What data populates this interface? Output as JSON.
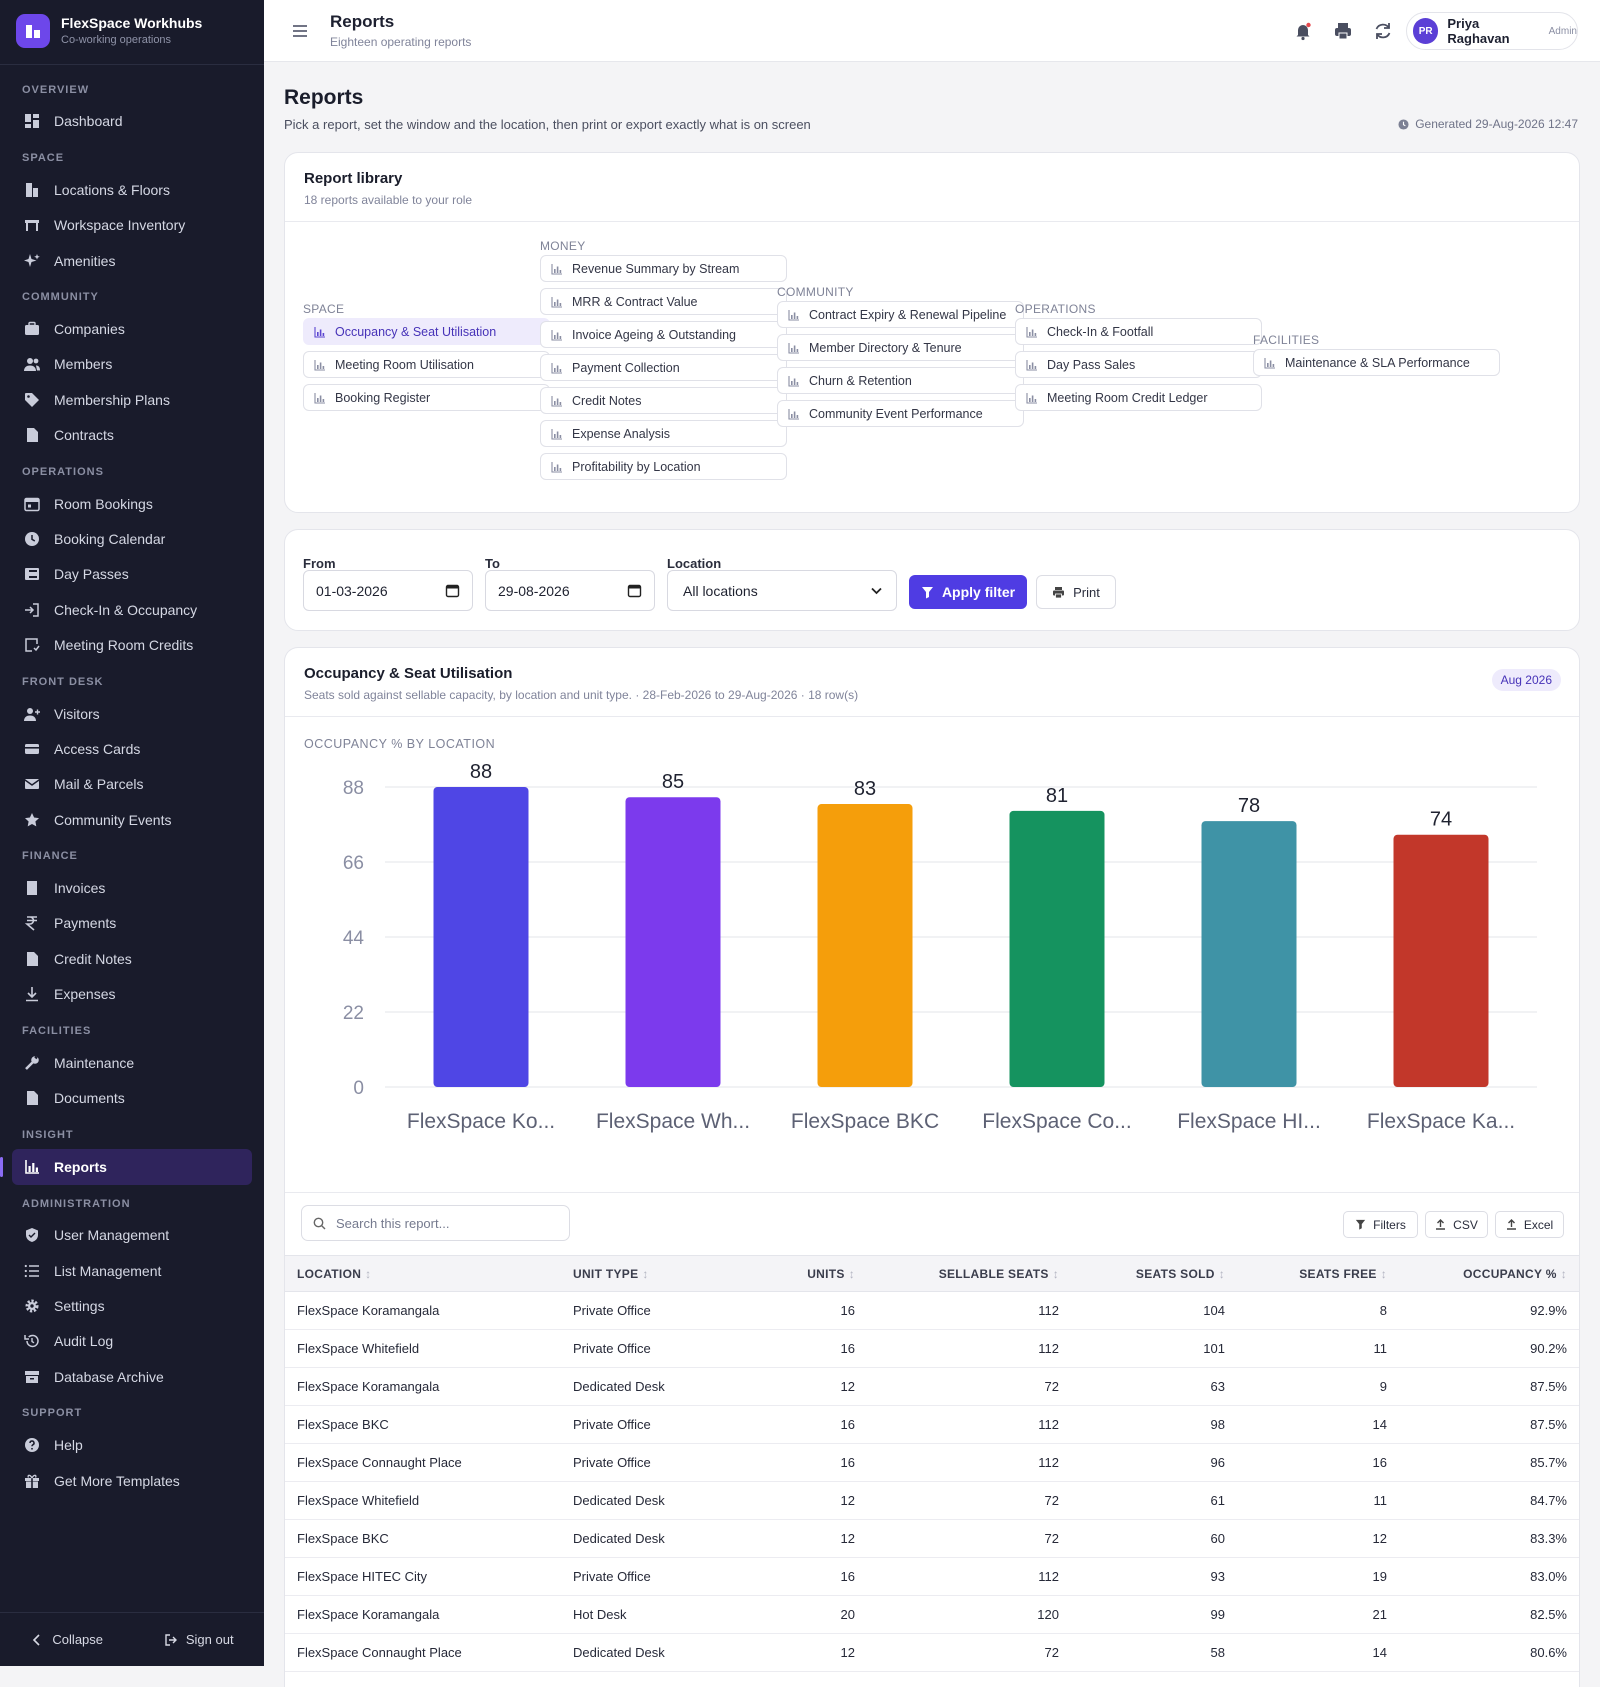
{
  "app": {
    "name": "FlexSpace Workhubs",
    "tagline": "Co-working operations"
  },
  "sidebar": {
    "sections": [
      {
        "label": "OVERVIEW",
        "items": [
          {
            "label": "Dashboard",
            "icon": "dashboard-icon"
          }
        ]
      },
      {
        "label": "SPACE",
        "items": [
          {
            "label": "Locations & Floors",
            "icon": "building-icon"
          },
          {
            "label": "Workspace Inventory",
            "icon": "desk-icon"
          },
          {
            "label": "Amenities",
            "icon": "sparkle-icon"
          }
        ]
      },
      {
        "label": "COMMUNITY",
        "items": [
          {
            "label": "Companies",
            "icon": "briefcase-icon"
          },
          {
            "label": "Members",
            "icon": "users-icon"
          },
          {
            "label": "Membership Plans",
            "icon": "tag-icon"
          },
          {
            "label": "Contracts",
            "icon": "file-icon"
          }
        ]
      },
      {
        "label": "OPERATIONS",
        "items": [
          {
            "label": "Room Bookings",
            "icon": "calendar-icon"
          },
          {
            "label": "Booking Calendar",
            "icon": "clock-icon"
          },
          {
            "label": "Day Passes",
            "icon": "ticket-icon"
          },
          {
            "label": "Check-In & Occupancy",
            "icon": "login-icon"
          },
          {
            "label": "Meeting Room Credits",
            "icon": "credit-icon"
          }
        ]
      },
      {
        "label": "FRONT DESK",
        "items": [
          {
            "label": "Visitors",
            "icon": "visitor-icon"
          },
          {
            "label": "Access Cards",
            "icon": "card-icon"
          },
          {
            "label": "Mail & Parcels",
            "icon": "mail-icon"
          },
          {
            "label": "Community Events",
            "icon": "star-icon"
          }
        ]
      },
      {
        "label": "FINANCE",
        "items": [
          {
            "label": "Invoices",
            "icon": "invoice-icon"
          },
          {
            "label": "Payments",
            "icon": "rupee-icon"
          },
          {
            "label": "Credit Notes",
            "icon": "file-icon"
          },
          {
            "label": "Expenses",
            "icon": "download-icon"
          }
        ]
      },
      {
        "label": "FACILITIES",
        "items": [
          {
            "label": "Maintenance",
            "icon": "wrench-icon"
          },
          {
            "label": "Documents",
            "icon": "file-icon"
          }
        ]
      },
      {
        "label": "INSIGHT",
        "items": [
          {
            "label": "Reports",
            "icon": "chart-icon",
            "active": true
          }
        ]
      },
      {
        "label": "ADMINISTRATION",
        "items": [
          {
            "label": "User Management",
            "icon": "shield-icon"
          },
          {
            "label": "List Management",
            "icon": "list-icon"
          },
          {
            "label": "Settings",
            "icon": "gear-icon"
          },
          {
            "label": "Audit Log",
            "icon": "history-icon"
          },
          {
            "label": "Database Archive",
            "icon": "archive-icon"
          }
        ]
      },
      {
        "label": "SUPPORT",
        "items": [
          {
            "label": "Help",
            "icon": "help-icon"
          },
          {
            "label": "Get More Templates",
            "icon": "gift-icon"
          }
        ]
      }
    ],
    "collapse": "Collapse",
    "signout": "Sign out"
  },
  "topbar": {
    "title": "Reports",
    "subtitle": "Eighteen operating reports",
    "user": {
      "initials": "PR",
      "name": "Priya Raghavan",
      "role": "Admin"
    }
  },
  "page": {
    "title": "Reports",
    "subtitle": "Pick a report, set the window and the location, then print or export exactly what is on screen",
    "generated": "Generated 29-Aug-2026 12:47"
  },
  "library": {
    "title": "Report library",
    "subtitle": "18 reports available to your role",
    "groups": [
      {
        "label": "SPACE",
        "items": [
          "Occupancy & Seat Utilisation",
          "Meeting Room Utilisation",
          "Booking Register"
        ]
      },
      {
        "label": "MONEY",
        "items": [
          "Revenue Summary by Stream",
          "MRR & Contract Value",
          "Invoice Ageing & Outstanding",
          "Payment Collection",
          "Credit Notes",
          "Expense Analysis",
          "Profitability by Location"
        ]
      },
      {
        "label": "COMMUNITY",
        "items": [
          "Contract Expiry & Renewal Pipeline",
          "Member Directory & Tenure",
          "Churn & Retention",
          "Community Event Performance"
        ]
      },
      {
        "label": "OPERATIONS",
        "items": [
          "Check-In & Footfall",
          "Day Pass Sales",
          "Meeting Room Credit Ledger"
        ]
      },
      {
        "label": "FACILITIES",
        "items": [
          "Maintenance & SLA Performance"
        ]
      }
    ],
    "selected": "Occupancy & Seat Utilisation"
  },
  "filters": {
    "from_label": "From",
    "from_value": "01-03-2026",
    "to_label": "To",
    "to_value": "29-08-2026",
    "location_label": "Location",
    "location_value": "All locations",
    "apply_label": "Apply filter",
    "print_label": "Print"
  },
  "report": {
    "title": "Occupancy & Seat Utilisation",
    "subtitle": "Seats sold against sellable capacity, by location and unit type. · 28-Feb-2026 to 29-Aug-2026 · 18 row(s)",
    "badge": "Aug 2026",
    "search_placeholder": "Search this report...",
    "filters_btn": "Filters",
    "csv_btn": "CSV",
    "excel_btn": "Excel",
    "columns": [
      "LOCATION",
      "UNIT TYPE",
      "UNITS",
      "SELLABLE SEATS",
      "SEATS SOLD",
      "SEATS FREE",
      "OCCUPANCY %"
    ],
    "rows": [
      [
        "FlexSpace Koramangala",
        "Private Office",
        "16",
        "112",
        "104",
        "8",
        "92.9%"
      ],
      [
        "FlexSpace Whitefield",
        "Private Office",
        "16",
        "112",
        "101",
        "11",
        "90.2%"
      ],
      [
        "FlexSpace Koramangala",
        "Dedicated Desk",
        "12",
        "72",
        "63",
        "9",
        "87.5%"
      ],
      [
        "FlexSpace BKC",
        "Private Office",
        "16",
        "112",
        "98",
        "14",
        "87.5%"
      ],
      [
        "FlexSpace Connaught Place",
        "Private Office",
        "16",
        "112",
        "96",
        "16",
        "85.7%"
      ],
      [
        "FlexSpace Whitefield",
        "Dedicated Desk",
        "12",
        "72",
        "61",
        "11",
        "84.7%"
      ],
      [
        "FlexSpace BKC",
        "Dedicated Desk",
        "12",
        "72",
        "60",
        "12",
        "83.3%"
      ],
      [
        "FlexSpace HITEC City",
        "Private Office",
        "16",
        "112",
        "93",
        "19",
        "83.0%"
      ],
      [
        "FlexSpace Koramangala",
        "Hot Desk",
        "20",
        "120",
        "99",
        "21",
        "82.5%"
      ],
      [
        "FlexSpace Connaught Place",
        "Dedicated Desk",
        "12",
        "72",
        "58",
        "14",
        "80.6%"
      ]
    ]
  },
  "chart_data": {
    "type": "bar",
    "title": "OCCUPANCY % BY LOCATION",
    "categories": [
      "FlexSpace Ko...",
      "FlexSpace Wh...",
      "FlexSpace BKC",
      "FlexSpace Co...",
      "FlexSpace HI...",
      "FlexSpace Ka..."
    ],
    "values": [
      88,
      85,
      83,
      81,
      78,
      74
    ],
    "colors": [
      "#4f46e5",
      "#7c3aed",
      "#f59e0b",
      "#15935f",
      "#3f93a6",
      "#c2372a"
    ],
    "yticks": [
      0,
      22,
      44,
      66,
      88
    ],
    "ylim": [
      0,
      88
    ],
    "grid": true
  }
}
